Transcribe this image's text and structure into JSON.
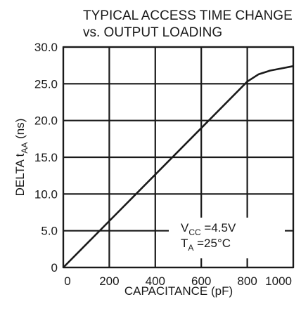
{
  "chart_data": {
    "type": "line",
    "title_lines": [
      "TYPICAL ACCESS TIME CHANGE",
      "vs. OUTPUT LOADING"
    ],
    "xlabel": "CAPACITANCE (pF)",
    "ylabel": {
      "main": "DELTA t",
      "sub": "AA",
      "unit": " (ns)"
    },
    "xlim": [
      0,
      1000
    ],
    "ylim": [
      0,
      30
    ],
    "x_ticks": [
      0,
      200,
      400,
      600,
      800,
      1000
    ],
    "x_tick_labels": [
      "0",
      "200",
      "400",
      "600",
      "800",
      "1000"
    ],
    "y_ticks": [
      0,
      5,
      10,
      15,
      20,
      25,
      30
    ],
    "y_tick_labels": [
      "0",
      "5.0",
      "10.0",
      "15.0",
      "20.0",
      "25.0",
      "30.0"
    ],
    "grid": true,
    "series": [
      {
        "x": [
          0,
          800,
          850,
          900,
          950,
          1000
        ],
        "y": [
          0,
          25.3,
          26.3,
          26.8,
          27.1,
          27.4
        ]
      }
    ],
    "annotation": {
      "line1": {
        "main": "V",
        "sub": "CC",
        "rest": " =4.5V"
      },
      "line2": {
        "main": "T",
        "sub": "A",
        "rest": " =25°C"
      }
    }
  }
}
